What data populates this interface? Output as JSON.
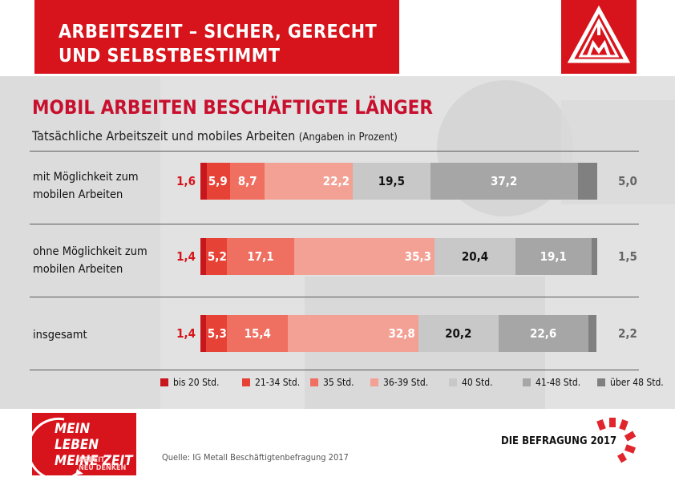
{
  "header": {
    "title": "ARBEITSZEIT – SICHER, GERECHT\nUND SELBSTBESTIMMT"
  },
  "main_title": "MOBIL ARBEITEN BESCHÄFTIGTE LÄNGER",
  "subtitle": {
    "main": "Tatsächliche Arbeitszeit und mobiles Arbeiten",
    "note": "(Angaben in Prozent)"
  },
  "colors": {
    "header_red": "#d7131b",
    "segments": [
      "#c8161d",
      "#e74236",
      "#ef6f61",
      "#f3a195",
      "#c8c8c8",
      "#a6a6a6",
      "#808080"
    ]
  },
  "chart_data": {
    "type": "bar",
    "orientation": "horizontal-stacked-100",
    "categories": [
      "mit Möglichkeit zum\nmobilen Arbeiten",
      "ohne Möglichkeit zum\nmobilen Arbeiten",
      "insgesamt"
    ],
    "series": [
      {
        "name": "bis 20 Std.",
        "values": [
          1.6,
          1.4,
          1.4
        ]
      },
      {
        "name": "21-34 Std.",
        "values": [
          5.9,
          5.2,
          5.3
        ]
      },
      {
        "name": "35 Std.",
        "values": [
          8.7,
          17.1,
          15.4
        ]
      },
      {
        "name": "36-39 Std.",
        "values": [
          22.2,
          35.3,
          32.8
        ]
      },
      {
        "name": "40 Std.",
        "values": [
          19.5,
          20.4,
          20.2
        ]
      },
      {
        "name": "41-48 Std.",
        "values": [
          37.2,
          19.1,
          22.6
        ]
      },
      {
        "name": "über 48 Std.",
        "values": [
          5.0,
          1.5,
          2.2
        ]
      }
    ],
    "value_labels": [
      [
        "1,6",
        "5,9",
        "8,7",
        "22,2",
        "19,5",
        "37,2",
        "5,0"
      ],
      [
        "1,4",
        "5,2",
        "17,1",
        "35,3",
        "20,4",
        "19,1",
        "1,5"
      ],
      [
        "1,4",
        "5,3",
        "15,4",
        "32,8",
        "20,2",
        "22,6",
        "2,2"
      ]
    ],
    "legend_position": "bottom",
    "grid": false
  },
  "badge": {
    "line1": "MEIN LEBEN\nMEINE ZEIT",
    "line2": "ARBEIT\nNEU DENKEN"
  },
  "source": "Quelle: IG Metall Beschäftigtenbefragung 2017",
  "footer_right": "DIE BEFRAGUNG 2017"
}
